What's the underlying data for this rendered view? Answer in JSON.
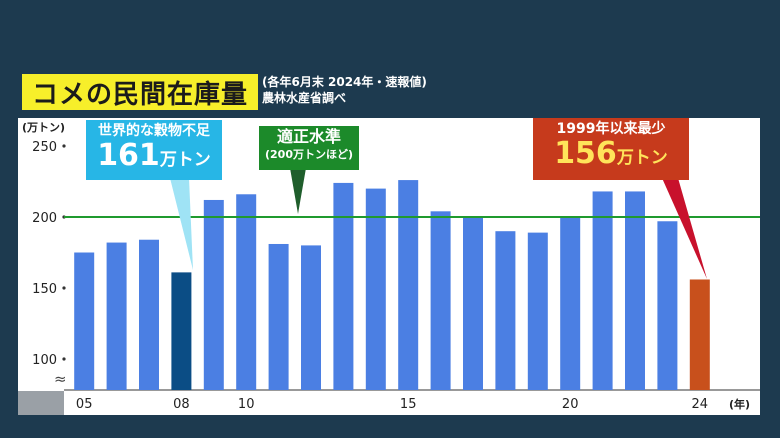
{
  "title": "コメの民間在庫量",
  "subtitle_line1": "(各年6月末 2024年・速報値)",
  "subtitle_line2": "農林水産省調べ",
  "callouts": {
    "crisis": {
      "line1": "世界的な穀物不足",
      "value": "161",
      "unit": "万トン"
    },
    "standard": {
      "line1": "適正水準",
      "line2": "(200万トンほど)"
    },
    "low": {
      "line1": "1999年以来最少",
      "value": "156",
      "unit": "万トン"
    }
  },
  "colors": {
    "bar": "#4b7fe3",
    "highlight_2008": "#0b4d85",
    "highlight_2024": "#c8501c",
    "reference_line": "#1f9a2e",
    "callout_crisis": "#27b6e6",
    "callout_standard": "#1c8a2a",
    "callout_low": "#c63a1c"
  },
  "chart_data": {
    "type": "bar",
    "unit_label": "(万トン)",
    "year_label": "(年)",
    "axis_break_symbol": "≈",
    "categories": [
      "05",
      "06",
      "07",
      "08",
      "09",
      "10",
      "11",
      "12",
      "13",
      "14",
      "15",
      "16",
      "17",
      "18",
      "19",
      "20",
      "21",
      "22",
      "23",
      "24"
    ],
    "x_tick_labels": {
      "05": "05",
      "08": "08",
      "10": "10",
      "15": "15",
      "20": "20",
      "24": "24"
    },
    "values": [
      175,
      182,
      184,
      161,
      212,
      216,
      181,
      180,
      224,
      220,
      226,
      204,
      200,
      190,
      189,
      200,
      218,
      218,
      197,
      156
    ],
    "highlighted": {
      "08": "highlight_2008",
      "24": "highlight_2024"
    },
    "yticks": [
      100,
      150,
      200,
      250
    ],
    "ylim": [
      80,
      260
    ],
    "reference_line": 200,
    "grid": false
  }
}
